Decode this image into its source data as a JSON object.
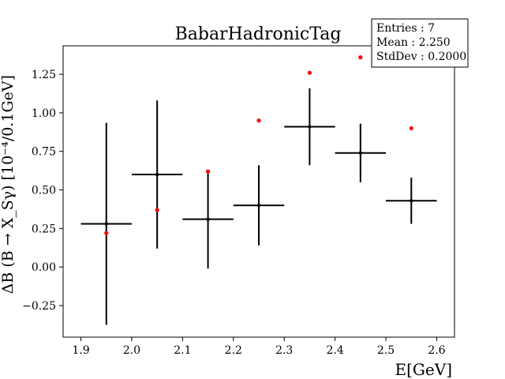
{
  "chart_data": {
    "type": "scatter",
    "title": "BabarHadronicTag",
    "xlabel": "E[GeV]",
    "ylabel": "ΔB (B → X_Sγ) [10⁻⁴/0.1GeV]",
    "xlim": [
      1.865,
      2.635
    ],
    "ylim": [
      -0.455,
      1.435
    ],
    "xticks": [
      1.9,
      2.0,
      2.1,
      2.2,
      2.3,
      2.4,
      2.5,
      2.6
    ],
    "xtick_labels": [
      "1.9",
      "2.0",
      "2.1",
      "2.2",
      "2.3",
      "2.4",
      "2.5",
      "2.6"
    ],
    "yticks": [
      -0.25,
      0.0,
      0.25,
      0.5,
      0.75,
      1.0,
      1.25
    ],
    "ytick_labels": [
      "−0.25",
      "0.00",
      "0.25",
      "0.50",
      "0.75",
      "1.00",
      "1.25"
    ],
    "grid": false,
    "series": [
      {
        "kind": "errorbar",
        "color": "#000000",
        "x": [
          1.95,
          2.05,
          2.15,
          2.25,
          2.35,
          2.45,
          2.55
        ],
        "xerr": [
          0.05,
          0.05,
          0.05,
          0.05,
          0.05,
          0.05,
          0.05
        ],
        "y": [
          0.28,
          0.6,
          0.31,
          0.4,
          0.91,
          0.74,
          0.43
        ],
        "yerr": [
          0.655,
          0.48,
          0.32,
          0.26,
          0.25,
          0.19,
          0.15
        ]
      },
      {
        "kind": "points",
        "color": "#ff0000",
        "x": [
          1.95,
          2.05,
          2.15,
          2.25,
          2.35,
          2.45,
          2.55
        ],
        "y": [
          0.22,
          0.37,
          0.62,
          0.95,
          1.26,
          1.36,
          0.9
        ]
      }
    ],
    "stats_box": {
      "entries_label": "Entries : 7",
      "mean_label": "Mean : 2.250",
      "stddev_label": "StdDev : 0.2000"
    }
  }
}
